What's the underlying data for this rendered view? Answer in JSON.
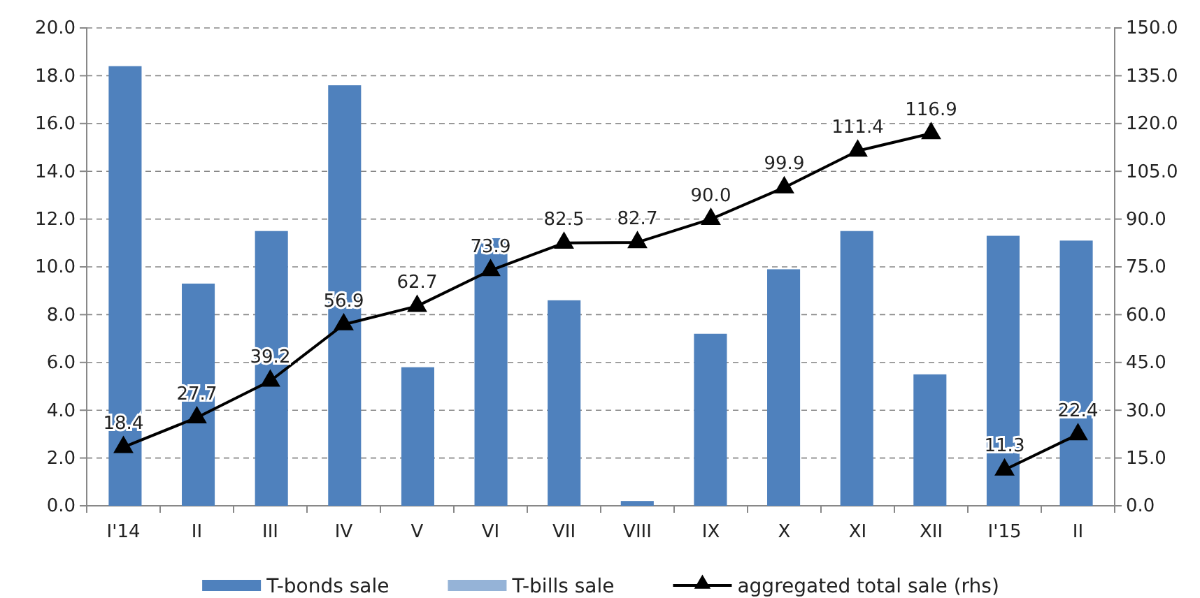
{
  "chart_data": {
    "type": "bar",
    "stacked": true,
    "categories": [
      "I'14",
      "II",
      "III",
      "IV",
      "V",
      "VI",
      "VII",
      "VIII",
      "IX",
      "X",
      "XI",
      "XII",
      "I'15",
      "II"
    ],
    "series": [
      {
        "name": "T-bonds sale",
        "color": "#4f81bd",
        "values": [
          18.4,
          9.3,
          11.5,
          17.6,
          5.8,
          11.2,
          8.6,
          0.2,
          7.2,
          9.9,
          11.5,
          5.5,
          11.3,
          11.1
        ]
      },
      {
        "name": "T-bills sale",
        "color": "#95b3d7",
        "values": [
          0,
          0,
          0,
          0,
          0,
          0,
          0,
          0,
          0,
          0,
          0,
          0,
          0,
          0
        ]
      },
      {
        "name": "aggregated total sale (rhs)",
        "type": "line",
        "axis": "y2",
        "color": "#000000",
        "marker": "triangle",
        "values": [
          18.4,
          27.7,
          39.2,
          56.9,
          62.7,
          73.9,
          82.5,
          82.7,
          90.0,
          99.9,
          111.4,
          116.9,
          null,
          null
        ],
        "value_labels": [
          "18.4",
          "27.7",
          "39.2",
          "56.9",
          "62.7",
          "73.9",
          "82.5",
          "82.7",
          "90.0",
          "99.9",
          "111.4",
          "116.9",
          null,
          null
        ]
      },
      {
        "type": "line",
        "axis": "y2",
        "color": "#000000",
        "marker": "triangle",
        "values": [
          null,
          null,
          null,
          null,
          null,
          null,
          null,
          null,
          null,
          null,
          null,
          null,
          11.3,
          22.4
        ],
        "value_labels": [
          null,
          null,
          null,
          null,
          null,
          null,
          null,
          null,
          null,
          null,
          null,
          null,
          "11.3",
          "22.4"
        ]
      }
    ],
    "ylim": [
      0,
      20
    ],
    "yticks": [
      {
        "value": 0,
        "label": "0.0"
      },
      {
        "value": 2,
        "label": "2.0"
      },
      {
        "value": 4,
        "label": "4.0"
      },
      {
        "value": 6,
        "label": "6.0"
      },
      {
        "value": 8,
        "label": "8.0"
      },
      {
        "value": 10,
        "label": "10.0"
      },
      {
        "value": 12,
        "label": "12.0"
      },
      {
        "value": 14,
        "label": "14.0"
      },
      {
        "value": 16,
        "label": "16.0"
      },
      {
        "value": 18,
        "label": "18.0"
      },
      {
        "value": 20,
        "label": "20.0"
      }
    ],
    "y2lim": [
      0,
      150
    ],
    "y2ticks": [
      {
        "value": 0,
        "label": "0.0"
      },
      {
        "value": 15,
        "label": "15.0"
      },
      {
        "value": 30,
        "label": "30.0"
      },
      {
        "value": 45,
        "label": "45.0"
      },
      {
        "value": 60,
        "label": "60.0"
      },
      {
        "value": 75,
        "label": "75.0"
      },
      {
        "value": 90,
        "label": "90.0"
      },
      {
        "value": 105,
        "label": "105.0"
      },
      {
        "value": 120,
        "label": "120.0"
      },
      {
        "value": 135,
        "label": "135.0"
      },
      {
        "value": 150,
        "label": "150.0"
      }
    ],
    "grid": "y",
    "legend": "bottom"
  }
}
